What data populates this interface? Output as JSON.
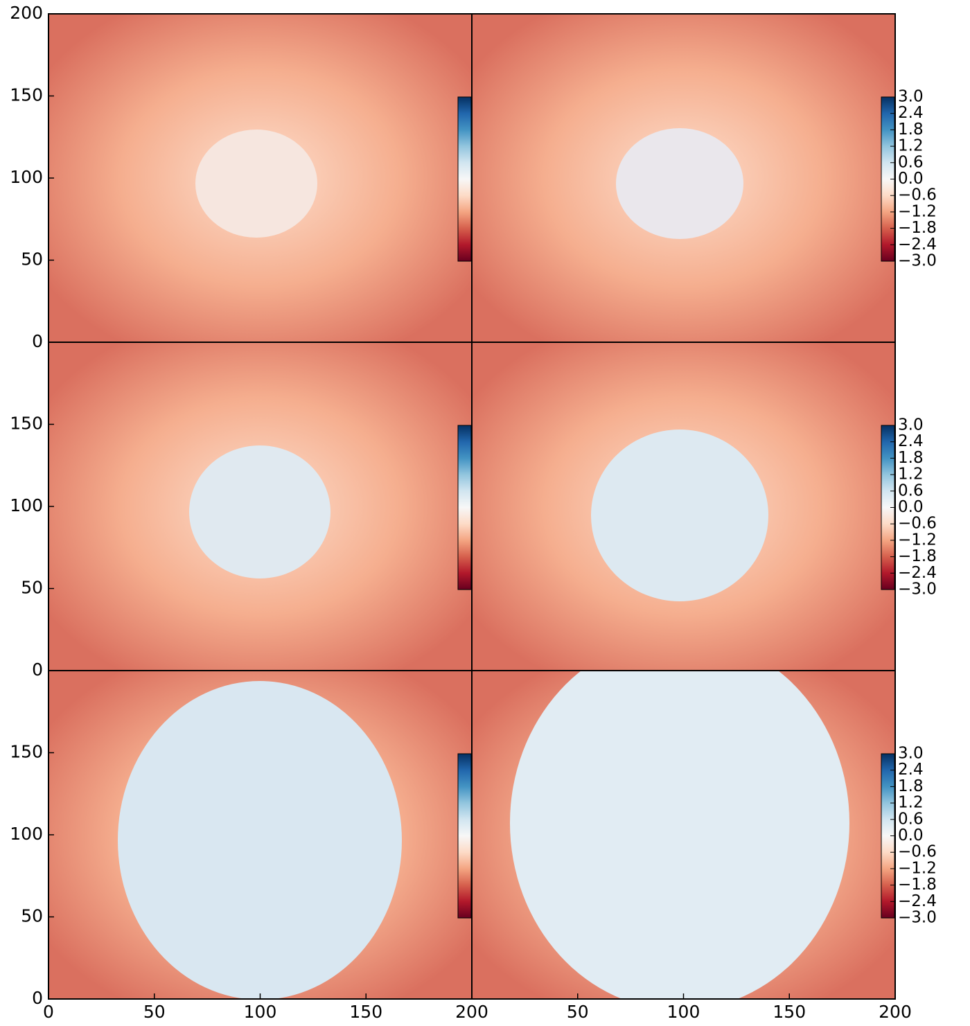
{
  "chart_data": [
    {
      "type": "heatmap",
      "xlim": [
        0,
        200
      ],
      "ylim": [
        0,
        200
      ],
      "xticks": [],
      "yticks": [
        0,
        50,
        100,
        150,
        200
      ],
      "clim": [
        -3,
        3
      ],
      "cticks": [],
      "colormap": [
        "#67001f",
        "#b2182b",
        "#d6604d",
        "#f4a582",
        "#fddbc7",
        "#f7f7f7",
        "#d1e5f0",
        "#92c5de",
        "#4393c3",
        "#2166ac",
        "#053061"
      ]
    },
    {
      "type": "heatmap",
      "xlim": [
        0,
        200
      ],
      "ylim": [
        0,
        200
      ],
      "xticks": [],
      "yticks": [],
      "clim": [
        -3,
        3
      ],
      "cticks": [
        {
          "value": 3,
          "label": "3.0"
        },
        {
          "value": 2.4,
          "label": "2.4"
        },
        {
          "value": 1.8,
          "label": "1.8"
        },
        {
          "value": 1.2,
          "label": "1.2"
        },
        {
          "value": 0.6,
          "label": "0.6"
        },
        {
          "value": 0,
          "label": "0.0"
        },
        {
          "value": -0.6,
          "label": "−0.6"
        },
        {
          "value": -1.2,
          "label": "−1.2"
        },
        {
          "value": -1.8,
          "label": "−1.8"
        },
        {
          "value": -2.4,
          "label": "−2.4"
        },
        {
          "value": -3,
          "label": "−3.0"
        }
      ],
      "colormap": [
        "#67001f",
        "#b2182b",
        "#d6604d",
        "#f4a582",
        "#fddbc7",
        "#f7f7f7",
        "#d1e5f0",
        "#92c5de",
        "#4393c3",
        "#2166ac",
        "#053061"
      ]
    },
    {
      "type": "heatmap",
      "xlim": [
        0,
        200
      ],
      "ylim": [
        0,
        200
      ],
      "xticks": [],
      "yticks": [
        0,
        50,
        100,
        150
      ],
      "clim": [
        -3,
        3
      ],
      "cticks": [],
      "colormap": [
        "#67001f",
        "#b2182b",
        "#d6604d",
        "#f4a582",
        "#fddbc7",
        "#f7f7f7",
        "#d1e5f0",
        "#92c5de",
        "#4393c3",
        "#2166ac",
        "#053061"
      ]
    },
    {
      "type": "heatmap",
      "xlim": [
        0,
        200
      ],
      "ylim": [
        0,
        200
      ],
      "xticks": [],
      "yticks": [],
      "clim": [
        -3,
        3
      ],
      "cticks": [
        {
          "value": 3,
          "label": "3.0"
        },
        {
          "value": 2.4,
          "label": "2.4"
        },
        {
          "value": 1.8,
          "label": "1.8"
        },
        {
          "value": 1.2,
          "label": "1.2"
        },
        {
          "value": 0.6,
          "label": "0.6"
        },
        {
          "value": 0,
          "label": "0.0"
        },
        {
          "value": -0.6,
          "label": "−0.6"
        },
        {
          "value": -1.2,
          "label": "−1.2"
        },
        {
          "value": -1.8,
          "label": "−1.8"
        },
        {
          "value": -2.4,
          "label": "−2.4"
        },
        {
          "value": -3,
          "label": "−3.0"
        }
      ],
      "colormap": [
        "#67001f",
        "#b2182b",
        "#d6604d",
        "#f4a582",
        "#fddbc7",
        "#f7f7f7",
        "#d1e5f0",
        "#92c5de",
        "#4393c3",
        "#2166ac",
        "#053061"
      ]
    },
    {
      "type": "heatmap",
      "xlim": [
        0,
        200
      ],
      "ylim": [
        0,
        200
      ],
      "xticks": [
        0,
        50,
        100,
        150,
        200
      ],
      "yticks": [
        0,
        50,
        100,
        150
      ],
      "clim": [
        -3,
        3
      ],
      "cticks": [],
      "colormap": [
        "#67001f",
        "#b2182b",
        "#d6604d",
        "#f4a582",
        "#fddbc7",
        "#f7f7f7",
        "#d1e5f0",
        "#92c5de",
        "#4393c3",
        "#2166ac",
        "#053061"
      ]
    },
    {
      "type": "heatmap",
      "xlim": [
        0,
        200
      ],
      "ylim": [
        0,
        200
      ],
      "xticks": [
        50,
        100,
        150,
        200
      ],
      "yticks": [],
      "clim": [
        -3,
        3
      ],
      "cticks": [
        {
          "value": 3,
          "label": "3.0"
        },
        {
          "value": 2.4,
          "label": "2.4"
        },
        {
          "value": 1.8,
          "label": "1.8"
        },
        {
          "value": 1.2,
          "label": "1.2"
        },
        {
          "value": 0.6,
          "label": "0.6"
        },
        {
          "value": 0,
          "label": "0.0"
        },
        {
          "value": -0.6,
          "label": "−0.6"
        },
        {
          "value": -1.2,
          "label": "−1.2"
        },
        {
          "value": -1.8,
          "label": "−1.8"
        },
        {
          "value": -2.4,
          "label": "−2.4"
        },
        {
          "value": -3,
          "label": "−3.0"
        }
      ],
      "colormap": [
        "#67001f",
        "#b2182b",
        "#d6604d",
        "#f4a582",
        "#fddbc7",
        "#f7f7f7",
        "#d1e5f0",
        "#92c5de",
        "#4393c3",
        "#2166ac",
        "#053061"
      ]
    }
  ]
}
